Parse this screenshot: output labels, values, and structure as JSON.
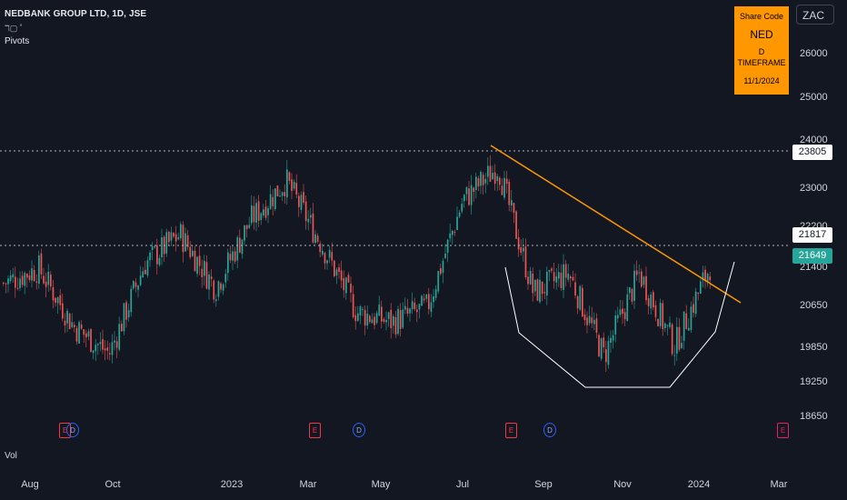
{
  "header": {
    "symbol_title": "NEDBANK GROUP LTD, 1D, JSE",
    "indicator_glyph": "ℸ▢ ˚",
    "pivots_label": "Pivots",
    "volume_label": "Vol"
  },
  "currency": "ZAC",
  "info_box": {
    "line1": "Share Code",
    "line2": "NED",
    "line3": "D TIMEFRAME",
    "line4": "11/1/2024"
  },
  "price_axis": [
    "26000",
    "25000",
    "24000",
    "23000",
    "22200",
    "21400",
    "20650",
    "19850",
    "19250",
    "18650"
  ],
  "price_boxes": {
    "level_1": "23805",
    "level_2": "21817",
    "last_price": "21649"
  },
  "time_axis": [
    "Aug",
    "Oct",
    "2023",
    "Mar",
    "May",
    "Jul",
    "Sep",
    "Nov",
    "2024",
    "Mar"
  ],
  "events": [
    {
      "type": "E",
      "kind": "earnings"
    },
    {
      "type": "D",
      "kind": "dividend"
    },
    {
      "type": "E",
      "kind": "earnings"
    },
    {
      "type": "D",
      "kind": "dividend"
    },
    {
      "type": "E",
      "kind": "earnings"
    },
    {
      "type": "D",
      "kind": "dividend"
    },
    {
      "type": "E",
      "kind": "earnings-upcoming"
    }
  ],
  "colors": {
    "background": "#131722",
    "up_candle": "#26a69a",
    "down_candle": "#ef5350",
    "trendline": "#ff9800",
    "cup_pattern": "#ffffff"
  },
  "chart_data": {
    "type": "candlestick",
    "symbol": "NED",
    "timeframe": "1D",
    "y_ticks": [
      26000,
      25000,
      24000,
      23000,
      22200,
      21400,
      20650,
      19850,
      19250,
      18650
    ],
    "horizontal_levels": [
      23805,
      21817
    ],
    "last_price": 21649,
    "x_ticks": [
      "Aug",
      "Oct",
      "2023",
      "Mar",
      "May",
      "Jul",
      "Sep",
      "Nov",
      "2024",
      "Mar"
    ],
    "close_path": [
      [
        "Jul 2022",
        21300
      ],
      [
        "Aug 2022",
        21600
      ],
      [
        "Sep 2022",
        20400
      ],
      [
        "Oct 2022",
        19850
      ],
      [
        "Nov 2022",
        21700
      ],
      [
        "Dec 2022",
        22300
      ],
      [
        "Jan 2023",
        21200
      ],
      [
        "Feb 2023",
        22600
      ],
      [
        "Feb 2023 late",
        23400
      ],
      [
        "Mar 2023",
        22100
      ],
      [
        "Apr 2023",
        20700
      ],
      [
        "May 2023",
        20500
      ],
      [
        "Jun 2023",
        20800
      ],
      [
        "Jul 2023",
        23000
      ],
      [
        "Aug 2023",
        23700
      ],
      [
        "Aug 2023 late",
        21100
      ],
      [
        "Sep 2023",
        21500
      ],
      [
        "Oct 2023",
        19800
      ],
      [
        "Nov 2023",
        21500
      ],
      [
        "Dec 2023",
        20000
      ],
      [
        "Jan 2024",
        21649
      ]
    ]
  }
}
